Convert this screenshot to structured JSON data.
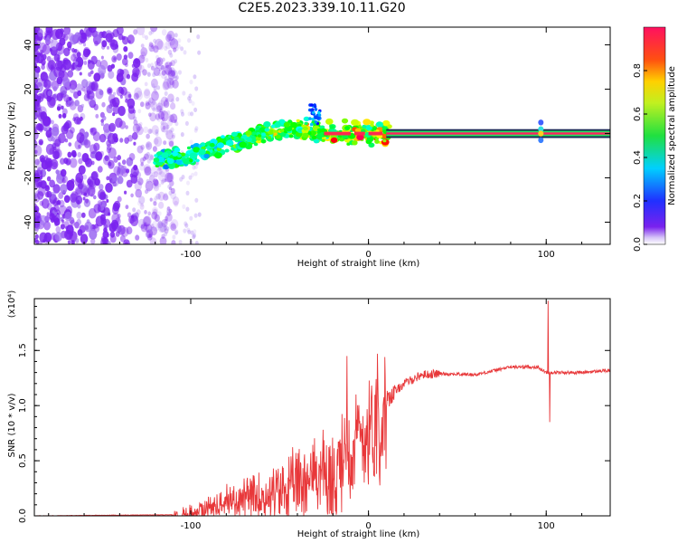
{
  "title": "C2E5.2023.339.10.11.G20",
  "colors": {
    "line": "#e8383a",
    "axis": "#000000"
  },
  "chart_data": [
    {
      "type": "heatmap",
      "xlabel": "Height of straight line (km)",
      "ylabel": "Frequency (Hz)",
      "xlim": [
        -188,
        136
      ],
      "ylim": [
        -50,
        48
      ],
      "x_ticks": [
        -100,
        0,
        100
      ],
      "y_ticks": [
        -40,
        -20,
        0,
        20,
        40
      ],
      "colorbar": {
        "label": "Normalized spectral amplitude",
        "range": [
          0,
          1
        ],
        "ticks": [
          0.0,
          0.2,
          0.4,
          0.6,
          0.8
        ]
      },
      "ridge": [
        {
          "x": -120,
          "y": -12
        },
        {
          "x": -100,
          "y": -10
        },
        {
          "x": -80,
          "y": -5
        },
        {
          "x": -60,
          "y": 0
        },
        {
          "x": -45,
          "y": 3
        },
        {
          "x": -30,
          "y": 0
        },
        {
          "x": -20,
          "y": 0
        },
        {
          "x": 0,
          "y": 0
        },
        {
          "x": 10,
          "y": 0
        },
        {
          "x": 100,
          "y": 0
        },
        {
          "x": 136,
          "y": 0
        }
      ]
    },
    {
      "type": "line",
      "xlabel": "Height of straight line (km)",
      "ylabel": "SNR (10 * v/v)",
      "y_multiplier": "(x10⁴)",
      "xlim": [
        -188,
        136
      ],
      "ylim": [
        0,
        1.97
      ],
      "x_ticks": [
        -100,
        0,
        100
      ],
      "y_ticks": [
        0.0,
        0.5,
        1.0,
        1.5
      ],
      "envelope": [
        {
          "x": -188,
          "y": 0.0
        },
        {
          "x": -110,
          "y": 0.01
        },
        {
          "x": -100,
          "y": 0.03
        },
        {
          "x": -90,
          "y": 0.08
        },
        {
          "x": -80,
          "y": 0.15
        },
        {
          "x": -70,
          "y": 0.17
        },
        {
          "x": -60,
          "y": 0.2
        },
        {
          "x": -50,
          "y": 0.25
        },
        {
          "x": -40,
          "y": 0.35
        },
        {
          "x": -30,
          "y": 0.45
        },
        {
          "x": -20,
          "y": 0.55
        },
        {
          "x": -10,
          "y": 0.75
        },
        {
          "x": 0,
          "y": 0.9
        },
        {
          "x": 10,
          "y": 1.05
        },
        {
          "x": 20,
          "y": 1.2
        },
        {
          "x": 30,
          "y": 1.28
        },
        {
          "x": 40,
          "y": 1.29
        },
        {
          "x": 60,
          "y": 1.28
        },
        {
          "x": 80,
          "y": 1.35
        },
        {
          "x": 95,
          "y": 1.35
        },
        {
          "x": 100,
          "y": 1.3
        },
        {
          "x": 120,
          "y": 1.3
        },
        {
          "x": 136,
          "y": 1.32
        }
      ],
      "spikes": [
        {
          "x": -20,
          "y": 0.0
        },
        {
          "x": -12,
          "y": 1.45
        },
        {
          "x": 5,
          "y": 1.47
        },
        {
          "x": 101,
          "y": 1.95
        },
        {
          "x": 102,
          "y": 0.85
        }
      ]
    }
  ]
}
